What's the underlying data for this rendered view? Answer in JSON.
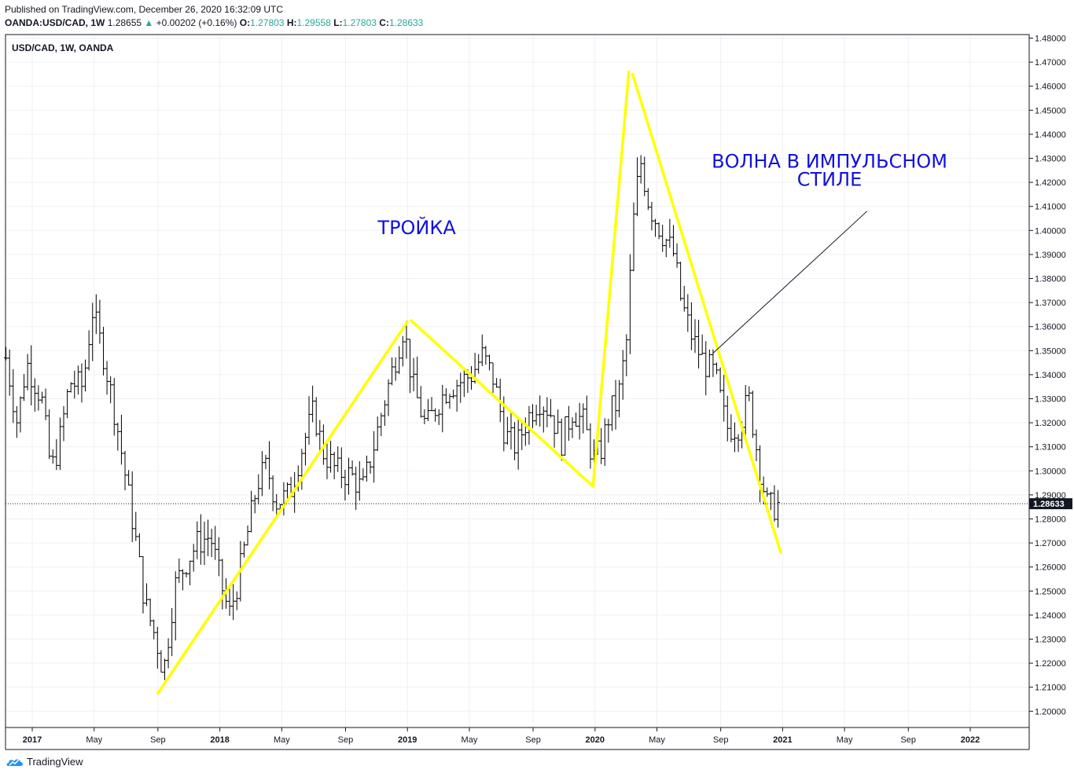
{
  "header": {
    "published": "Published on TradingView.com, December 26, 2020 16:32:09 UTC",
    "symbol": "OANDA:USD/CAD, 1W",
    "last": "1.28655",
    "change": "+0.00202 (+0.16%)",
    "o_label": "O:",
    "o": "1.27803",
    "h_label": "H:",
    "h": "1.29558",
    "l_label": "L:",
    "l": "1.27803",
    "c_label": "C:",
    "c": "1.28633",
    "up_arrow": "▲"
  },
  "footer": {
    "logo_text": "TradingView",
    "logo_icon": "tradingview-cloud-icon"
  },
  "colors": {
    "yellow": "#ffff00",
    "annotation_text": "#1111dd",
    "bars": "#000000",
    "grid": "#eef0f3"
  },
  "chart_data": {
    "type": "ohlc",
    "title": "USD/CAD, 1W, OANDA",
    "ylim": [
      1.19,
      1.48
    ],
    "yticks": [
      "1.48000",
      "1.47000",
      "1.46000",
      "1.45000",
      "1.44000",
      "1.43000",
      "1.42000",
      "1.41000",
      "1.40000",
      "1.39000",
      "1.38000",
      "1.37000",
      "1.36000",
      "1.35000",
      "1.34000",
      "1.33000",
      "1.32000",
      "1.31000",
      "1.30000",
      "1.29000",
      "1.28000",
      "1.27000",
      "1.26000",
      "1.25000",
      "1.24000",
      "1.23000",
      "1.22000",
      "1.21000",
      "1.20000"
    ],
    "xticks": [
      {
        "label": "2017",
        "t": 2017.0,
        "bold": true
      },
      {
        "label": "May",
        "t": 2017.33
      },
      {
        "label": "Sep",
        "t": 2017.67
      },
      {
        "label": "2018",
        "t": 2018.0,
        "bold": true
      },
      {
        "label": "May",
        "t": 2018.33
      },
      {
        "label": "Sep",
        "t": 2018.67
      },
      {
        "label": "2019",
        "t": 2019.0,
        "bold": true
      },
      {
        "label": "May",
        "t": 2019.33
      },
      {
        "label": "Sep",
        "t": 2019.67
      },
      {
        "label": "2020",
        "t": 2020.0,
        "bold": true
      },
      {
        "label": "May",
        "t": 2020.33
      },
      {
        "label": "Sep",
        "t": 2020.67
      },
      {
        "label": "2021",
        "t": 2021.0,
        "bold": true
      },
      {
        "label": "May",
        "t": 2021.33
      },
      {
        "label": "Sep",
        "t": 2021.67
      },
      {
        "label": "2022",
        "t": 2022.0,
        "bold": true
      }
    ],
    "last_price": "1.28633",
    "last_value": 1.28633,
    "anchors": [
      [
        2016.86,
        1.347
      ],
      [
        2016.92,
        1.32
      ],
      [
        2016.97,
        1.345
      ],
      [
        2017.05,
        1.33
      ],
      [
        2017.1,
        1.3
      ],
      [
        2017.14,
        1.31
      ],
      [
        2017.2,
        1.337
      ],
      [
        2017.27,
        1.335
      ],
      [
        2017.32,
        1.367
      ],
      [
        2017.38,
        1.348
      ],
      [
        2017.45,
        1.32
      ],
      [
        2017.5,
        1.296
      ],
      [
        2017.55,
        1.272
      ],
      [
        2017.6,
        1.245
      ],
      [
        2017.66,
        1.23
      ],
      [
        2017.7,
        1.216
      ],
      [
        2017.76,
        1.252
      ],
      [
        2017.82,
        1.262
      ],
      [
        2017.88,
        1.27
      ],
      [
        2017.95,
        1.273
      ],
      [
        2018.0,
        1.255
      ],
      [
        2018.05,
        1.24
      ],
      [
        2018.09,
        1.252
      ],
      [
        2018.15,
        1.275
      ],
      [
        2018.2,
        1.295
      ],
      [
        2018.25,
        1.302
      ],
      [
        2018.3,
        1.287
      ],
      [
        2018.37,
        1.29
      ],
      [
        2018.44,
        1.31
      ],
      [
        2018.5,
        1.325
      ],
      [
        2018.55,
        1.308
      ],
      [
        2018.62,
        1.3
      ],
      [
        2018.7,
        1.298
      ],
      [
        2018.76,
        1.292
      ],
      [
        2018.82,
        1.31
      ],
      [
        2018.88,
        1.33
      ],
      [
        2018.93,
        1.345
      ],
      [
        2018.98,
        1.36
      ],
      [
        2019.03,
        1.335
      ],
      [
        2019.1,
        1.318
      ],
      [
        2019.16,
        1.328
      ],
      [
        2019.22,
        1.335
      ],
      [
        2019.28,
        1.337
      ],
      [
        2019.34,
        1.34
      ],
      [
        2019.4,
        1.348
      ],
      [
        2019.46,
        1.338
      ],
      [
        2019.52,
        1.315
      ],
      [
        2019.58,
        1.31
      ],
      [
        2019.64,
        1.322
      ],
      [
        2019.7,
        1.33
      ],
      [
        2019.76,
        1.325
      ],
      [
        2019.82,
        1.312
      ],
      [
        2019.88,
        1.325
      ],
      [
        2019.94,
        1.32
      ],
      [
        2019.99,
        1.305
      ],
      [
        2020.03,
        1.308
      ],
      [
        2020.08,
        1.325
      ],
      [
        2020.12,
        1.328
      ],
      [
        2020.17,
        1.355
      ],
      [
        2020.2,
        1.4
      ],
      [
        2020.24,
        1.43
      ],
      [
        2020.29,
        1.41
      ],
      [
        2020.35,
        1.4
      ],
      [
        2020.42,
        1.39
      ],
      [
        2020.46,
        1.37
      ],
      [
        2020.52,
        1.355
      ],
      [
        2020.58,
        1.345
      ],
      [
        2020.64,
        1.34
      ],
      [
        2020.7,
        1.318
      ],
      [
        2020.76,
        1.318
      ],
      [
        2020.82,
        1.33
      ],
      [
        2020.88,
        1.3
      ],
      [
        2020.92,
        1.285
      ],
      [
        2020.96,
        1.285
      ],
      [
        2020.985,
        1.2865
      ]
    ],
    "overlays": {
      "troika_lines": [
        [
          [
            2017.67,
            1.2075
          ],
          [
            2019.0,
            1.362
          ]
        ],
        [
          [
            2019.02,
            1.3625
          ],
          [
            2019.99,
            1.2935
          ]
        ]
      ],
      "impulse_lines": [
        [
          [
            2019.99,
            1.294
          ],
          [
            2020.18,
            1.466
          ]
        ],
        [
          [
            2020.2,
            1.465
          ],
          [
            2020.99,
            1.266
          ]
        ]
      ],
      "pointer_line": [
        [
          2020.63,
          1.349
        ],
        [
          2021.45,
          1.408
        ]
      ]
    },
    "annotations": [
      {
        "text": "ТРОЙКА",
        "t": 2019.05,
        "v": 1.3985
      },
      {
        "text": "ВОЛНА В ИМПУЛЬСНОМ",
        "t": 2021.25,
        "v": 1.426
      },
      {
        "text": "СТИЛЕ",
        "t": 2021.25,
        "v": 1.4185
      }
    ]
  }
}
